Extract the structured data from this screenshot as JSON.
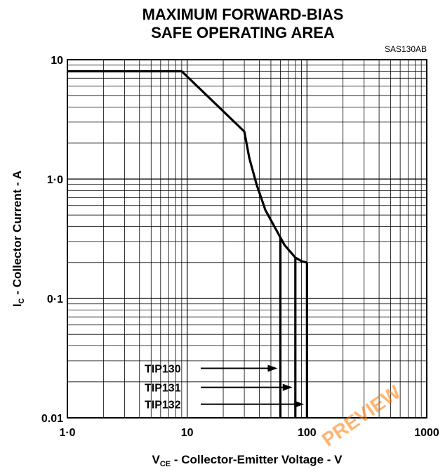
{
  "chart_data": {
    "type": "line",
    "title_line1": "MAXIMUM FORWARD-BIAS",
    "title_line2": "SAFE OPERATING AREA",
    "figure_code": "SAS130AB",
    "xlabel_main": "V",
    "xlabel_sub": "CE",
    "xlabel_rest": " - Collector-Emitter Voltage - V",
    "ylabel_main": "I",
    "ylabel_sub": "C",
    "ylabel_rest": " - Collector Current - A",
    "x_scale": "log",
    "y_scale": "log",
    "xlim": [
      1,
      1000
    ],
    "ylim": [
      0.01,
      10
    ],
    "x_ticks": [
      {
        "value": 1,
        "label": "1·0"
      },
      {
        "value": 10,
        "label": "10"
      },
      {
        "value": 100,
        "label": "100"
      },
      {
        "value": 1000,
        "label": "1000"
      }
    ],
    "y_ticks": [
      {
        "value": 0.01,
        "label": "0.01"
      },
      {
        "value": 0.1,
        "label": "0·1"
      },
      {
        "value": 1,
        "label": "1·0"
      },
      {
        "value": 10,
        "label": "10"
      }
    ],
    "grid": true,
    "boundary": {
      "x": [
        1,
        9,
        30,
        33,
        38,
        45,
        55,
        65,
        80,
        90,
        100
      ],
      "y": [
        8,
        8,
        2.5,
        1.5,
        0.9,
        0.55,
        0.38,
        0.28,
        0.22,
        0.205,
        0.2
      ]
    },
    "series": [
      {
        "name": "TIP130",
        "vmax": 60,
        "arrow_y": 0.026
      },
      {
        "name": "TIP131",
        "vmax": 80,
        "arrow_y": 0.018
      },
      {
        "name": "TIP132",
        "vmax": 100,
        "arrow_y": 0.013
      }
    ]
  },
  "watermark": {
    "text": "PREVIEW",
    "color": "#ff7a00"
  }
}
